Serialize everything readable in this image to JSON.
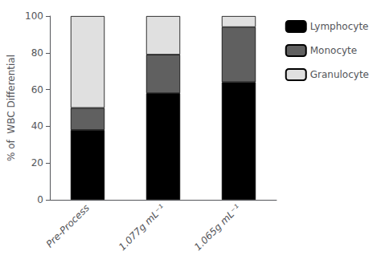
{
  "chart_data": {
    "type": "bar",
    "stacked": true,
    "categories": [
      "Pre-Process",
      "1.077g mL⁻¹",
      "1.065g mL⁻¹"
    ],
    "series": [
      {
        "name": "Lymphocyte",
        "color": "#000000",
        "values": [
          38,
          58,
          64
        ]
      },
      {
        "name": "Monocyte",
        "color": "#606060",
        "values": [
          12,
          21,
          30
        ]
      },
      {
        "name": "Granulocyte",
        "color": "#e0e0e0",
        "values": [
          50,
          21,
          6
        ]
      }
    ],
    "ylabel": "% of  WBC Differential",
    "ylim": [
      0,
      100
    ],
    "yticks": [
      0,
      20,
      40,
      60,
      80,
      100
    ],
    "grid": false,
    "legend": "right"
  }
}
